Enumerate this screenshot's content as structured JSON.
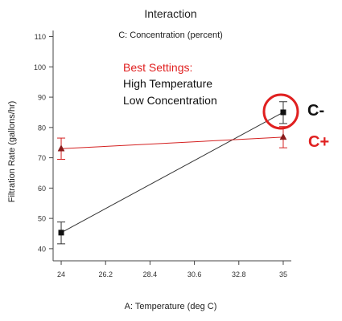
{
  "chart_data": {
    "type": "line",
    "title": "Interaction",
    "subtitle": "C: Concentration (percent)",
    "xlabel": "A: Temperature (deg C)",
    "ylabel": "Filtration Rate (gallons/hr)",
    "xlim": [
      23.6,
      35.4
    ],
    "ylim": [
      36,
      112
    ],
    "x_ticks": [
      "24",
      "26.2",
      "28.4",
      "30.6",
      "32.8",
      "35"
    ],
    "y_ticks": [
      "40",
      "50",
      "60",
      "70",
      "80",
      "90",
      "100",
      "110"
    ],
    "x_tick_values": [
      24,
      26.2,
      28.4,
      30.6,
      32.8,
      35
    ],
    "y_tick_values": [
      40,
      50,
      60,
      70,
      80,
      90,
      100,
      110
    ],
    "grid": false,
    "series": [
      {
        "marker": "square",
        "color": "#333333",
        "x": [
          24,
          35
        ],
        "values": [
          45.3,
          85
        ],
        "error_low": [
          41.6,
          81.3
        ],
        "error_high": [
          48.8,
          88.5
        ]
      },
      {
        "marker": "triangle",
        "color": "#d42020",
        "x": [
          24,
          35
        ],
        "values": [
          73,
          76.8
        ],
        "error_low": [
          69.5,
          73.3
        ],
        "error_high": [
          76.5,
          80.3
        ]
      }
    ],
    "annotations": {
      "settings_heading": "Best Settings:",
      "settings_line1": "High Temperature",
      "settings_line2": "Low Concentration",
      "label_c_minus": "C-",
      "label_c_plus": "C+"
    },
    "colors": {
      "highlight": "#e02020",
      "heading": "#e02020",
      "c_minus": "#111111",
      "c_plus": "#e02020"
    }
  }
}
